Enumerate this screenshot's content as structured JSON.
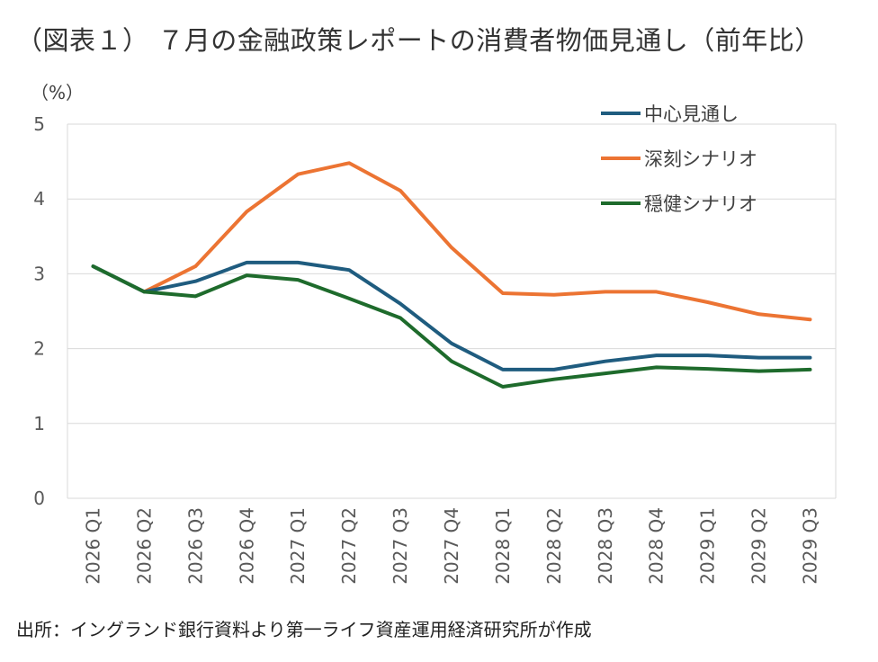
{
  "title": "（図表１） ７月の金融政策レポートの消費者物価見通し（前年比）",
  "source": "出所：イングランド銀行資料より第一ライフ資産運用経済研究所が作成",
  "chart_data": {
    "type": "line",
    "title": "（図表１） ７月の金融政策レポートの消費者物価見通し（前年比）",
    "ylabel": "（%）",
    "xlabel": "",
    "ylim": [
      0,
      5
    ],
    "yticks": [
      "0",
      "1",
      "2",
      "3",
      "4",
      "5"
    ],
    "categories": [
      "2026 Q1",
      "2026 Q2",
      "2026 Q3",
      "2026 Q4",
      "2027 Q1",
      "2027 Q2",
      "2027 Q3",
      "2027 Q4",
      "2028 Q1",
      "2028 Q2",
      "2028 Q3",
      "2028 Q4",
      "2029 Q1",
      "2029 Q2",
      "2029 Q3"
    ],
    "grid": "horizontal",
    "legend_position": "top-right",
    "series": [
      {
        "name": "中心見通し",
        "color": "#1f5c7f",
        "values": [
          3.1,
          2.76,
          2.9,
          3.15,
          3.15,
          3.05,
          2.6,
          2.07,
          1.72,
          1.72,
          1.83,
          1.91,
          1.91,
          1.88,
          1.88
        ]
      },
      {
        "name": "深刻シナリオ",
        "color": "#ec7433",
        "values": [
          null,
          2.76,
          3.1,
          3.83,
          4.33,
          4.48,
          4.11,
          3.35,
          2.74,
          2.72,
          2.76,
          2.76,
          2.62,
          2.46,
          2.39
        ]
      },
      {
        "name": "穏健シナリオ",
        "color": "#1e6b2c",
        "values": [
          3.1,
          2.76,
          2.7,
          2.98,
          2.92,
          2.67,
          2.41,
          1.83,
          1.49,
          1.59,
          1.67,
          1.75,
          1.73,
          1.7,
          1.72
        ]
      }
    ]
  }
}
